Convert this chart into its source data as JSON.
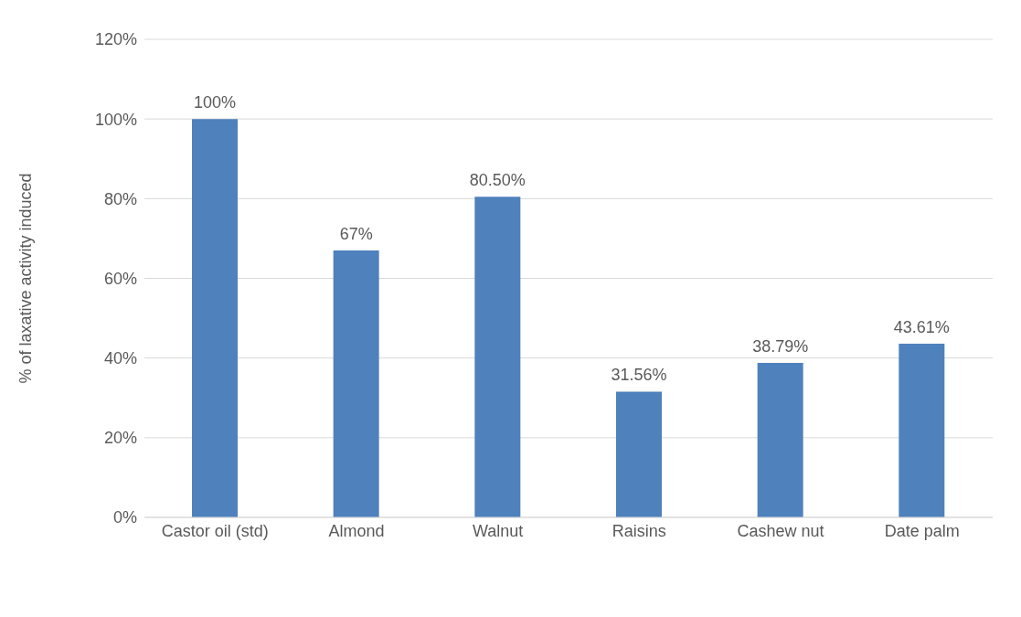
{
  "chart_data": {
    "type": "bar",
    "ylabel": "% of laxative activity induced",
    "categories": [
      "Castor oil (std)",
      "Almond",
      "Walnut",
      "Raisins",
      "Cashew nut",
      "Date palm"
    ],
    "values": [
      100,
      67,
      80.5,
      31.56,
      38.79,
      43.61
    ],
    "value_labels": [
      "100%",
      "67%",
      "80.50%",
      "31.56%",
      "38.79%",
      "43.61%"
    ],
    "color": "#4f81bd",
    "ylim": [
      0,
      120
    ],
    "yticks": [
      {
        "value": 0,
        "label": "0%"
      },
      {
        "value": 20,
        "label": "20%"
      },
      {
        "value": 40,
        "label": "40%"
      },
      {
        "value": 60,
        "label": "60%"
      },
      {
        "value": 80,
        "label": "80%"
      },
      {
        "value": 100,
        "label": "100%"
      },
      {
        "value": 120,
        "label": "120%"
      }
    ],
    "grid": "y",
    "legend": false
  }
}
